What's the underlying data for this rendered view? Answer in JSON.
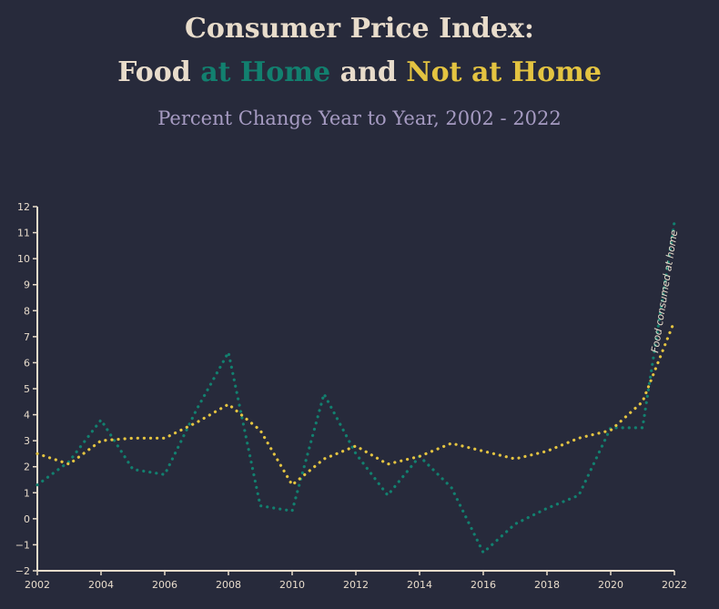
{
  "header": {
    "title_line1": "Consumer Price Index:",
    "title_food": "Food ",
    "title_at_home": "at Home",
    "title_and": " and ",
    "title_not_at_home": "Not at Home",
    "subtitle": "Percent Change Year to Year, 2002 - 2022"
  },
  "colors": {
    "background": "#272a3b",
    "title": "#e8dccb",
    "subtitle": "#a69bc2",
    "at_home": "#12806f",
    "not_at_home": "#e4c441",
    "axis": "#e8dccb"
  },
  "chart_data": {
    "type": "line",
    "x": [
      2002,
      2003,
      2004,
      2005,
      2006,
      2007,
      2008,
      2009,
      2010,
      2011,
      2012,
      2013,
      2014,
      2015,
      2016,
      2017,
      2018,
      2019,
      2020,
      2021,
      2022
    ],
    "series": [
      {
        "key": "at_home",
        "color": "#12806f",
        "values": [
          1.3,
          2.2,
          3.8,
          1.9,
          1.7,
          4.2,
          6.4,
          0.5,
          0.3,
          4.8,
          2.5,
          0.9,
          2.4,
          1.2,
          -1.3,
          -0.2,
          0.4,
          0.9,
          3.5,
          3.5,
          11.4
        ]
      },
      {
        "key": "not_at_home",
        "color": "#e4c441",
        "values": [
          2.5,
          2.1,
          3.0,
          3.1,
          3.1,
          3.7,
          4.4,
          3.4,
          1.3,
          2.3,
          2.8,
          2.1,
          2.4,
          2.9,
          2.6,
          2.3,
          2.6,
          3.1,
          3.4,
          4.5,
          7.6
        ]
      }
    ],
    "xticks": [
      "2002",
      "2004",
      "2006",
      "2008",
      "2010",
      "2012",
      "2014",
      "2016",
      "2018",
      "2020",
      "2022"
    ],
    "yticks": [
      -2,
      -1,
      0,
      1,
      2,
      3,
      4,
      5,
      6,
      7,
      8,
      9,
      10,
      11,
      12
    ],
    "ytick_labels": [
      "−2",
      "−1",
      "0",
      "1",
      "2",
      "3",
      "4",
      "5",
      "6",
      "7",
      "8",
      "9",
      "10",
      "11",
      "12"
    ],
    "xlim": [
      2002,
      2022
    ],
    "ylim": [
      -2,
      12
    ],
    "annotation": "Food consumed at home",
    "grid": false,
    "xlabel": "",
    "ylabel": ""
  }
}
